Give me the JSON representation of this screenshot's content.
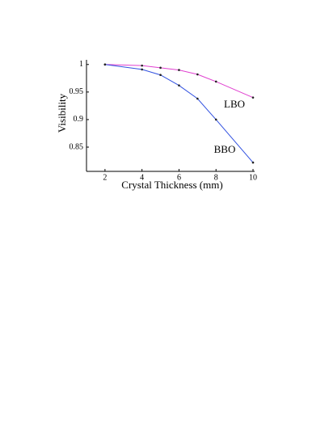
{
  "chart_data": {
    "type": "line",
    "x": [
      2,
      4,
      5,
      6,
      7,
      8,
      10
    ],
    "series": [
      {
        "name": "LBO",
        "color": "#e040d0",
        "values": [
          1.0,
          0.998,
          0.994,
          0.99,
          0.982,
          0.969,
          0.94
        ]
      },
      {
        "name": "BBO",
        "color": "#3050e0",
        "values": [
          1.0,
          0.991,
          0.981,
          0.962,
          0.938,
          0.9,
          0.822
        ]
      }
    ],
    "xlabel": "Crystal Thickness (mm)",
    "ylabel": "Visibility",
    "xlim": [
      1,
      10
    ],
    "ylim": [
      0.806,
      1.007
    ],
    "xticks": [
      2,
      4,
      6,
      8,
      10
    ],
    "yticks": [
      0.85,
      0.9,
      0.95,
      1
    ],
    "grid": false
  }
}
